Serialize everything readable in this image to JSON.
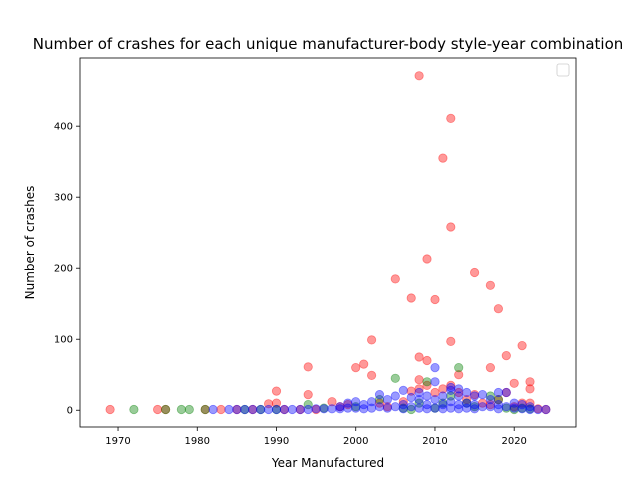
{
  "chart_data": {
    "type": "scatter",
    "title": "Number of crashes for each unique manufacturer-body style-year combination",
    "xlabel": "Year Manufactured",
    "ylabel": "Number of crashes",
    "xlim": [
      1965.2,
      2027.8
    ],
    "ylim": [
      -23.6,
      496
    ],
    "xticks": [
      1970,
      1980,
      1990,
      2000,
      2010,
      2020
    ],
    "yticks": [
      0,
      100,
      200,
      300,
      400
    ],
    "grid": false,
    "legend": {
      "placement": "top-right",
      "entries": []
    },
    "series": [
      {
        "color": "#ff0000",
        "opacity": 0.4,
        "points": [
          [
            1969,
            1
          ],
          [
            1975,
            1
          ],
          [
            1976,
            1
          ],
          [
            1981,
            1
          ],
          [
            1983,
            1
          ],
          [
            1985,
            1
          ],
          [
            1987,
            1
          ],
          [
            1989,
            9
          ],
          [
            1990,
            10
          ],
          [
            1990,
            27
          ],
          [
            1991,
            1
          ],
          [
            1993,
            1
          ],
          [
            1994,
            22
          ],
          [
            1994,
            61
          ],
          [
            1995,
            1
          ],
          [
            1997,
            12
          ],
          [
            1998,
            5
          ],
          [
            1999,
            8
          ],
          [
            2000,
            60
          ],
          [
            2001,
            65
          ],
          [
            2002,
            49
          ],
          [
            2002,
            99
          ],
          [
            2003,
            10
          ],
          [
            2004,
            5
          ],
          [
            2005,
            185
          ],
          [
            2006,
            12
          ],
          [
            2007,
            27
          ],
          [
            2007,
            158
          ],
          [
            2008,
            471
          ],
          [
            2008,
            75
          ],
          [
            2008,
            43
          ],
          [
            2008,
            30
          ],
          [
            2009,
            213
          ],
          [
            2009,
            70
          ],
          [
            2009,
            35
          ],
          [
            2010,
            156
          ],
          [
            2010,
            25
          ],
          [
            2011,
            355
          ],
          [
            2011,
            30
          ],
          [
            2012,
            411
          ],
          [
            2012,
            258
          ],
          [
            2012,
            97
          ],
          [
            2012,
            35
          ],
          [
            2013,
            50
          ],
          [
            2013,
            25
          ],
          [
            2014,
            15
          ],
          [
            2015,
            194
          ],
          [
            2015,
            22
          ],
          [
            2016,
            10
          ],
          [
            2017,
            176
          ],
          [
            2017,
            60
          ],
          [
            2017,
            8
          ],
          [
            2018,
            143
          ],
          [
            2018,
            15
          ],
          [
            2019,
            77
          ],
          [
            2019,
            25
          ],
          [
            2020,
            38
          ],
          [
            2020,
            5
          ],
          [
            2021,
            91
          ],
          [
            2021,
            10
          ],
          [
            2022,
            40
          ],
          [
            2022,
            30
          ],
          [
            2022,
            10
          ],
          [
            2023,
            2
          ],
          [
            2024,
            1
          ]
        ]
      },
      {
        "color": "#008000",
        "opacity": 0.4,
        "points": [
          [
            1972,
            1
          ],
          [
            1976,
            1
          ],
          [
            1978,
            1
          ],
          [
            1979,
            1
          ],
          [
            1981,
            1
          ],
          [
            1986,
            1
          ],
          [
            1988,
            1
          ],
          [
            1990,
            1
          ],
          [
            1994,
            8
          ],
          [
            1996,
            3
          ],
          [
            2000,
            5
          ],
          [
            2003,
            15
          ],
          [
            2005,
            45
          ],
          [
            2006,
            3
          ],
          [
            2007,
            1
          ],
          [
            2008,
            10
          ],
          [
            2009,
            40
          ],
          [
            2010,
            3
          ],
          [
            2011,
            10
          ],
          [
            2012,
            20
          ],
          [
            2013,
            60
          ],
          [
            2014,
            10
          ],
          [
            2015,
            5
          ],
          [
            2017,
            20
          ],
          [
            2018,
            15
          ],
          [
            2019,
            3
          ],
          [
            2020,
            1
          ],
          [
            2021,
            3
          ],
          [
            2022,
            2
          ]
        ]
      },
      {
        "color": "#0000ff",
        "opacity": 0.4,
        "points": [
          [
            1982,
            1
          ],
          [
            1984,
            1
          ],
          [
            1985,
            1
          ],
          [
            1986,
            1
          ],
          [
            1987,
            1
          ],
          [
            1988,
            1
          ],
          [
            1989,
            1
          ],
          [
            1990,
            1
          ],
          [
            1991,
            1
          ],
          [
            1992,
            1
          ],
          [
            1993,
            1
          ],
          [
            1994,
            1
          ],
          [
            1995,
            2
          ],
          [
            1996,
            2
          ],
          [
            1997,
            2
          ],
          [
            1998,
            5
          ],
          [
            1998,
            2
          ],
          [
            1999,
            10
          ],
          [
            1999,
            3
          ],
          [
            2000,
            12
          ],
          [
            2000,
            3
          ],
          [
            2001,
            8
          ],
          [
            2001,
            2
          ],
          [
            2002,
            12
          ],
          [
            2002,
            3
          ],
          [
            2003,
            22
          ],
          [
            2003,
            5
          ],
          [
            2004,
            15
          ],
          [
            2004,
            3
          ],
          [
            2005,
            20
          ],
          [
            2005,
            5
          ],
          [
            2006,
            28
          ],
          [
            2006,
            8
          ],
          [
            2006,
            2
          ],
          [
            2007,
            18
          ],
          [
            2007,
            5
          ],
          [
            2008,
            25
          ],
          [
            2008,
            15
          ],
          [
            2008,
            3
          ],
          [
            2009,
            20
          ],
          [
            2009,
            8
          ],
          [
            2009,
            2
          ],
          [
            2010,
            60
          ],
          [
            2010,
            40
          ],
          [
            2010,
            15
          ],
          [
            2010,
            3
          ],
          [
            2011,
            20
          ],
          [
            2011,
            8
          ],
          [
            2011,
            2
          ],
          [
            2012,
            32
          ],
          [
            2012,
            28
          ],
          [
            2012,
            12
          ],
          [
            2012,
            3
          ],
          [
            2013,
            30
          ],
          [
            2013,
            20
          ],
          [
            2013,
            8
          ],
          [
            2013,
            2
          ],
          [
            2014,
            25
          ],
          [
            2014,
            10
          ],
          [
            2014,
            3
          ],
          [
            2015,
            20
          ],
          [
            2015,
            8
          ],
          [
            2015,
            2
          ],
          [
            2016,
            22
          ],
          [
            2016,
            5
          ],
          [
            2017,
            15
          ],
          [
            2017,
            5
          ],
          [
            2018,
            25
          ],
          [
            2018,
            8
          ],
          [
            2018,
            2
          ],
          [
            2019,
            25
          ],
          [
            2019,
            5
          ],
          [
            2020,
            10
          ],
          [
            2020,
            3
          ],
          [
            2021,
            8
          ],
          [
            2021,
            2
          ],
          [
            2022,
            5
          ],
          [
            2022,
            1
          ],
          [
            2023,
            1
          ],
          [
            2024,
            1
          ]
        ]
      }
    ]
  }
}
